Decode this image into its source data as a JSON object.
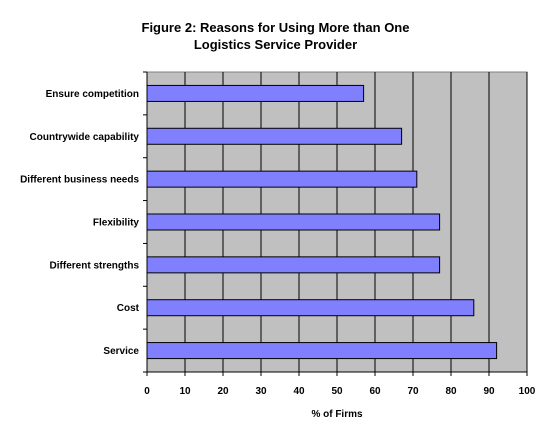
{
  "chart_data": {
    "type": "bar",
    "orientation": "horizontal",
    "title_line1": "Figure 2:  Reasons for Using More than One",
    "title_line2": "Logistics Service Provider",
    "xlabel": "% of Firms",
    "ylabel": "",
    "xlim": [
      0,
      100
    ],
    "x_ticks": [
      0,
      10,
      20,
      30,
      40,
      50,
      60,
      70,
      80,
      90,
      100
    ],
    "categories": [
      "Ensure competition",
      "Countrywide capability",
      "Different business needs",
      "Flexibility",
      "Different strengths",
      "Cost",
      "Service"
    ],
    "values": [
      57,
      67,
      71,
      77,
      77,
      86,
      92
    ],
    "grid": "vertical",
    "legend": "none",
    "colors": {
      "bar_fill": "#8080ff",
      "bar_stroke": "#000000",
      "plot_background": "#c0c0c0",
      "gridline": "#000000"
    }
  }
}
